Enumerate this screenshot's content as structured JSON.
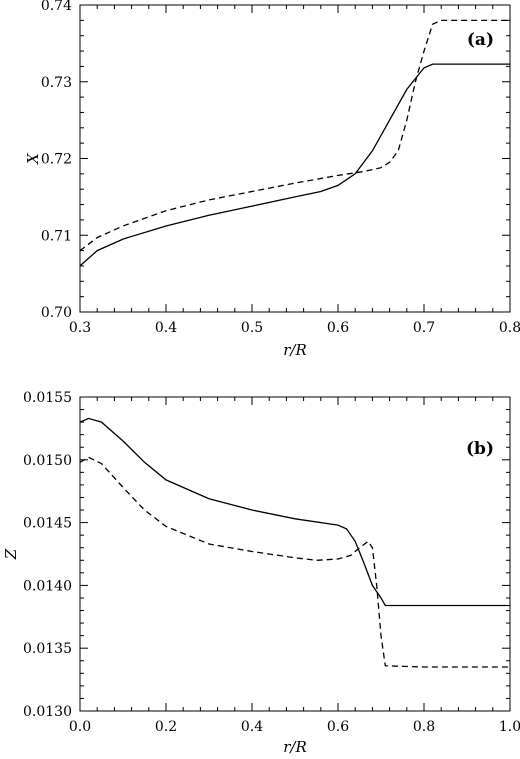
{
  "chart_data": [
    {
      "type": "line",
      "panel_label": "(a)",
      "xlabel": "r/R",
      "ylabel": "X",
      "xlim": [
        0.3,
        0.8
      ],
      "ylim": [
        0.7,
        0.74
      ],
      "xticks": [
        "0.3",
        "0.4",
        "0.5",
        "0.6",
        "0.7",
        "0.8"
      ],
      "yticks": [
        "0.70",
        "0.71",
        "0.72",
        "0.73",
        "0.74"
      ],
      "series": [
        {
          "style": "solid",
          "x": [
            0.3,
            0.32,
            0.35,
            0.4,
            0.45,
            0.5,
            0.55,
            0.58,
            0.6,
            0.62,
            0.64,
            0.66,
            0.68,
            0.7,
            0.71,
            0.75,
            0.8
          ],
          "y": [
            0.706,
            0.708,
            0.7095,
            0.7112,
            0.7126,
            0.7138,
            0.715,
            0.7157,
            0.7165,
            0.718,
            0.721,
            0.725,
            0.729,
            0.7318,
            0.7323,
            0.7323,
            0.7323
          ]
        },
        {
          "style": "dashed",
          "x": [
            0.3,
            0.32,
            0.35,
            0.4,
            0.45,
            0.5,
            0.55,
            0.6,
            0.63,
            0.65,
            0.66,
            0.67,
            0.68,
            0.69,
            0.7,
            0.71,
            0.72,
            0.8
          ],
          "y": [
            0.708,
            0.7097,
            0.7112,
            0.7132,
            0.7146,
            0.7157,
            0.7168,
            0.7178,
            0.7183,
            0.7188,
            0.7195,
            0.721,
            0.725,
            0.73,
            0.734,
            0.7375,
            0.738,
            0.738
          ]
        }
      ]
    },
    {
      "type": "line",
      "panel_label": "(b)",
      "xlabel": "r/R",
      "ylabel": "Z",
      "xlim": [
        0.0,
        1.0
      ],
      "ylim": [
        0.013,
        0.0155
      ],
      "xticks": [
        "0.0",
        "0.2",
        "0.4",
        "0.6",
        "0.8",
        "1.0"
      ],
      "yticks": [
        "0.0130",
        "0.0135",
        "0.0140",
        "0.0145",
        "0.0150",
        "0.0155"
      ],
      "series": [
        {
          "style": "solid",
          "x": [
            0.0,
            0.02,
            0.05,
            0.1,
            0.15,
            0.2,
            0.3,
            0.4,
            0.5,
            0.6,
            0.62,
            0.64,
            0.66,
            0.68,
            0.7,
            0.71,
            0.8,
            1.0
          ],
          "y": [
            0.0153,
            0.01533,
            0.0153,
            0.01515,
            0.01498,
            0.01484,
            0.01469,
            0.0146,
            0.01453,
            0.01448,
            0.01445,
            0.01435,
            0.01418,
            0.014,
            0.0139,
            0.01384,
            0.01384,
            0.01384
          ]
        },
        {
          "style": "dashed",
          "x": [
            0.0,
            0.02,
            0.05,
            0.1,
            0.15,
            0.2,
            0.3,
            0.4,
            0.5,
            0.55,
            0.6,
            0.63,
            0.65,
            0.67,
            0.68,
            0.69,
            0.7,
            0.71,
            0.8,
            1.0
          ],
          "y": [
            0.01498,
            0.01502,
            0.01497,
            0.01478,
            0.0146,
            0.01447,
            0.01433,
            0.01427,
            0.01422,
            0.0142,
            0.01421,
            0.01424,
            0.0143,
            0.01435,
            0.0143,
            0.014,
            0.0136,
            0.01336,
            0.01335,
            0.01335
          ]
        }
      ]
    }
  ]
}
